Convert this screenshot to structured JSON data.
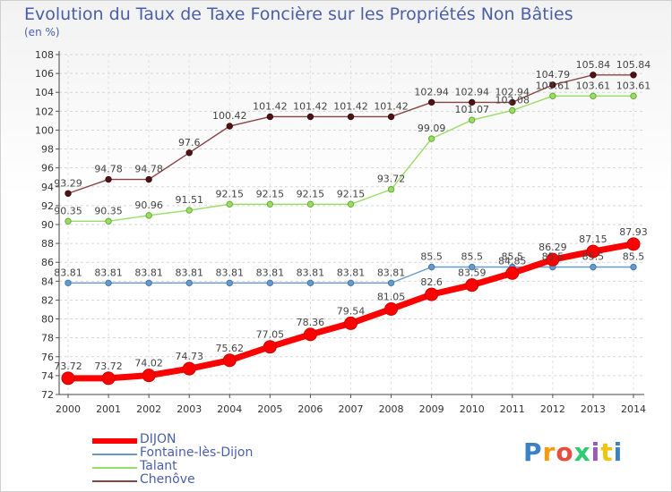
{
  "header": {
    "title": "Evolution du Taux de Taxe Foncière sur les Propriétés Non Bâties",
    "unit": "(en %)"
  },
  "chart_data": {
    "type": "line",
    "title": "Evolution du Taux de Taxe Foncière sur les Propriétés Non Bâties",
    "ylabel": "(en %)",
    "xlabel": "",
    "ylim": [
      72,
      108
    ],
    "yticks": [
      72,
      74,
      76,
      78,
      80,
      82,
      84,
      86,
      88,
      90,
      92,
      94,
      96,
      98,
      100,
      102,
      104,
      106,
      108
    ],
    "categories": [
      "2000",
      "2001",
      "2002",
      "2003",
      "2004",
      "2005",
      "2006",
      "2007",
      "2008",
      "2009",
      "2010",
      "2011",
      "2012",
      "2013",
      "2014"
    ],
    "grid": "horizontal dashed",
    "legend_position": "bottom-left",
    "series": [
      {
        "name": "DIJON",
        "color": "#ff0000",
        "values": [
          73.72,
          73.72,
          74.02,
          74.73,
          75.62,
          77.05,
          78.36,
          79.54,
          81.05,
          82.6,
          83.59,
          84.85,
          86.29,
          87.15,
          87.93
        ],
        "labels": [
          "73.72",
          "73.72",
          "74.02",
          "74.73",
          "75.62",
          "77.05",
          "78.36",
          "79.54",
          "81.05",
          "82.6",
          "83.59",
          "84.85",
          "86.29",
          "87.15",
          "87.93"
        ]
      },
      {
        "name": "Fontaine-lès-Dijon",
        "color": "#6699cc",
        "values": [
          83.81,
          83.81,
          83.81,
          83.81,
          83.81,
          83.81,
          83.81,
          83.81,
          83.81,
          85.5,
          85.5,
          85.5,
          85.5,
          85.5,
          85.5
        ],
        "labels": [
          "83.81",
          "83.81",
          "83.81",
          "83.81",
          "83.81",
          "83.81",
          "83.81",
          "83.81",
          "83.81",
          "85.5",
          "85.5",
          "85.5",
          "85.5",
          "85.5",
          "85.5"
        ]
      },
      {
        "name": "Talant",
        "color": "#99dd66",
        "values": [
          90.35,
          90.35,
          90.96,
          91.51,
          92.15,
          92.15,
          92.15,
          92.15,
          93.72,
          99.09,
          101.07,
          102.08,
          103.61,
          103.61,
          103.61
        ],
        "labels": [
          "90.35",
          "90.35",
          "90.96",
          "91.51",
          "92.15",
          "92.15",
          "92.15",
          "92.15",
          "93.72",
          "99.09",
          "101.07",
          "102.08",
          "103.61",
          "103.61",
          "103.61"
        ]
      },
      {
        "name": "Chenôve",
        "color": "#884444",
        "values": [
          93.29,
          94.78,
          94.78,
          97.6,
          100.42,
          101.42,
          101.42,
          101.42,
          101.42,
          102.94,
          102.94,
          102.94,
          104.79,
          105.84,
          105.84
        ],
        "labels": [
          "93.29",
          "94.78",
          "94.78",
          "97.6",
          "100.42",
          "101.42",
          "101.42",
          "101.42",
          "101.42",
          "102.94",
          "102.94",
          "102.94",
          "104.79",
          "105.84",
          "105.84"
        ]
      }
    ]
  },
  "logo": {
    "text": "Proxiti",
    "colors": [
      "#3b82c4",
      "#f39c12",
      "#e74c3c",
      "#2ecc71",
      "#9b59b6",
      "#f1c40f",
      "#3b82c4"
    ]
  }
}
